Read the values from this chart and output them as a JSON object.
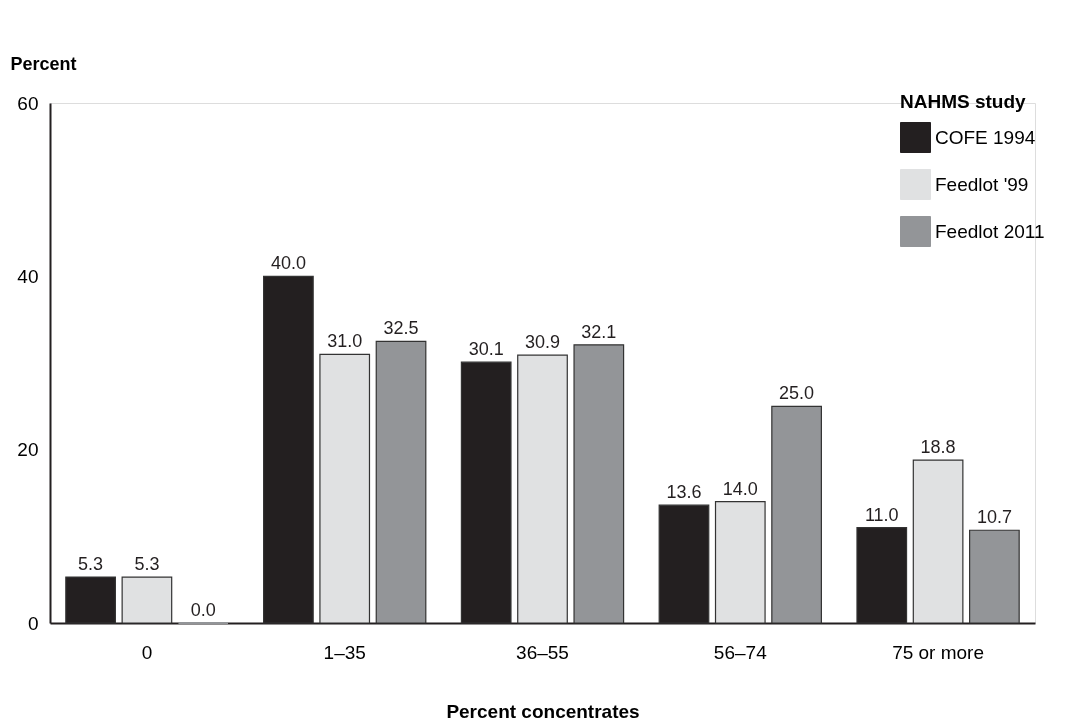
{
  "chart_data": {
    "type": "bar",
    "xlabel": "Percent concentrates",
    "ylabel": "Percent",
    "legend_title": "NAHMS study",
    "categories": [
      "0",
      "1–35",
      "36–55",
      "56–74",
      "75 or more"
    ],
    "series": [
      {
        "name": "COFE 1994",
        "color": "#231f20",
        "values": [
          5.3,
          40.0,
          30.1,
          13.6,
          11.0
        ],
        "value_labels": [
          "5.3",
          "40.0",
          "30.1",
          "13.6",
          "11.0"
        ]
      },
      {
        "name": "Feedlot '99",
        "color": "#e0e1e2",
        "values": [
          5.3,
          31.0,
          30.9,
          14.0,
          18.8
        ],
        "value_labels": [
          "5.3",
          "31.0",
          "30.9",
          "14.0",
          "18.8"
        ]
      },
      {
        "name": "Feedlot 2011",
        "color": "#939598",
        "values": [
          0.0,
          32.5,
          32.1,
          25.0,
          10.7
        ],
        "value_labels": [
          "0.0",
          "32.5",
          "32.1",
          "25.0",
          "10.7"
        ]
      }
    ],
    "ylim": [
      0,
      60
    ],
    "yticks": [
      0,
      20,
      40,
      60
    ],
    "grid": false,
    "legend": "top right"
  }
}
